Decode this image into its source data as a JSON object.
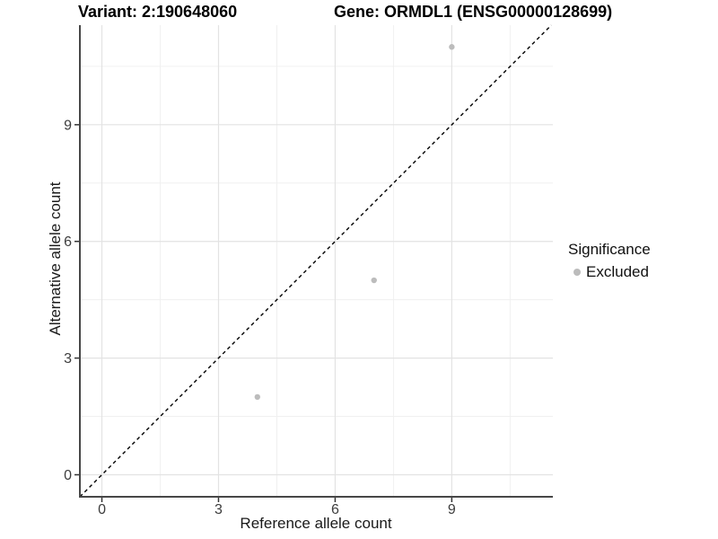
{
  "page": {
    "background": "#ffffff"
  },
  "header": {
    "variant_title": "Variant: 2:190648060",
    "gene_title": "Gene: ORMDL1 (ENSG00000128699)"
  },
  "axes": {
    "x_label": "Reference allele count",
    "y_label": "Alternative allele count"
  },
  "legend": {
    "title": "Significance",
    "items": [
      {
        "label": "Excluded",
        "color": "#bcbcbc"
      }
    ]
  },
  "colors": {
    "background": "#ffffff",
    "point": "#bcbcbc",
    "grid_major": "#e3e3e3",
    "grid_minor": "#f0f0f0",
    "axis_line": "#474747",
    "tick_mark": "#333333",
    "tick_label": "#3d3d3d",
    "reference_line": "#000000"
  },
  "chart_data": {
    "type": "scatter",
    "title": "Variant: 2:190648060 | Gene: ORMDL1 (ENSG00000128699)",
    "xlabel": "Reference allele count",
    "ylabel": "Alternative allele count",
    "xlim": [
      -0.566,
      11.6
    ],
    "ylim": [
      -0.566,
      11.56
    ],
    "x_major_ticks": [
      0,
      3,
      6,
      9
    ],
    "y_major_ticks": [
      0,
      3,
      6,
      9
    ],
    "x_minor_ticks": [
      1.5,
      4.5,
      7.5,
      10.5
    ],
    "y_minor_ticks": [
      1.5,
      4.5,
      7.5,
      10.5
    ],
    "grid": true,
    "legend_position": "right",
    "series": [
      {
        "name": "Excluded",
        "color": "#bcbcbc",
        "marker": "circle",
        "point_radius": 3.2,
        "points": [
          [
            4,
            2
          ],
          [
            7,
            5
          ],
          [
            9,
            11
          ]
        ]
      }
    ],
    "reference_line": {
      "slope": 1,
      "intercept": 0,
      "style": "dashed",
      "color": "#000000"
    }
  }
}
